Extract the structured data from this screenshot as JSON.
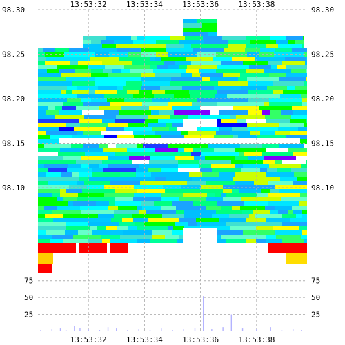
{
  "chart_data": {
    "type": "heatmap",
    "title": "",
    "xlabel": "",
    "ylabel": "",
    "x_ticks": [
      "13:53:32",
      "13:53:34",
      "13:53:36",
      "13:53:38"
    ],
    "x_range": [
      "13:53:30.2",
      "13:53:39.8"
    ],
    "heatmap_y_ticks": [
      "98.30",
      "98.25",
      "98.20",
      "98.15",
      "98.10"
    ],
    "heatmap_y_range": [
      98.055,
      98.3
    ],
    "volume_y_ticks": [
      "75",
      "50",
      "25"
    ],
    "volume_y_range": [
      0,
      87
    ],
    "grid": true,
    "color_scale": [
      "#ff0000",
      "#ffff00",
      "#00ff00",
      "#00ffff",
      "#0000ff",
      "#8000ff"
    ],
    "bar_color": "#b3b3ff",
    "volume_series": [
      {
        "x": "13:53:30.3",
        "v": 2
      },
      {
        "x": "13:53:30.7",
        "v": 3
      },
      {
        "x": "13:53:31.0",
        "v": 4
      },
      {
        "x": "13:53:31.2",
        "v": 2
      },
      {
        "x": "13:53:31.5",
        "v": 8
      },
      {
        "x": "13:53:31.7",
        "v": 5
      },
      {
        "x": "13:53:32.0",
        "v": 3
      },
      {
        "x": "13:53:32.4",
        "v": 2
      },
      {
        "x": "13:53:32.7",
        "v": 6
      },
      {
        "x": "13:53:33.0",
        "v": 4
      },
      {
        "x": "13:53:33.4",
        "v": 2
      },
      {
        "x": "13:53:33.8",
        "v": 3
      },
      {
        "x": "13:53:34.2",
        "v": 2
      },
      {
        "x": "13:53:34.6",
        "v": 4
      },
      {
        "x": "13:53:35.0",
        "v": 2
      },
      {
        "x": "13:53:35.4",
        "v": 3
      },
      {
        "x": "13:53:35.8",
        "v": 5
      },
      {
        "x": "13:53:36.1",
        "v": 52
      },
      {
        "x": "13:53:36.4",
        "v": 3
      },
      {
        "x": "13:53:36.8",
        "v": 6
      },
      {
        "x": "13:53:37.1",
        "v": 25
      },
      {
        "x": "13:53:37.5",
        "v": 4
      },
      {
        "x": "13:53:38.0",
        "v": 3
      },
      {
        "x": "13:53:38.5",
        "v": 6
      },
      {
        "x": "13:53:38.9",
        "v": 2
      },
      {
        "x": "13:53:39.3",
        "v": 3
      },
      {
        "x": "13:53:39.6",
        "v": 2
      }
    ]
  }
}
